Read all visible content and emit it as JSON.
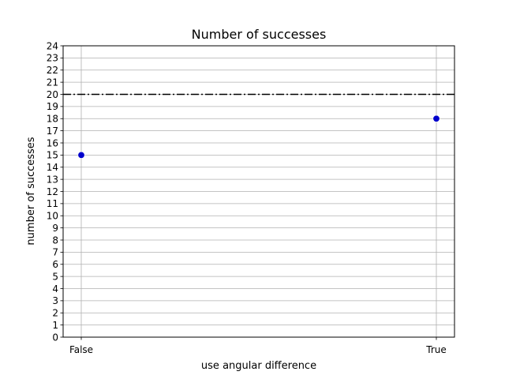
{
  "chart_data": {
    "type": "scatter",
    "title": "Number of successes",
    "xlabel": "use angular difference",
    "ylabel": "number of successes",
    "categories": [
      "False",
      "True"
    ],
    "values": [
      15,
      18
    ],
    "ylim": [
      0,
      24
    ],
    "y_ticks": [
      0,
      1,
      2,
      3,
      4,
      5,
      6,
      7,
      8,
      9,
      10,
      11,
      12,
      13,
      14,
      15,
      16,
      17,
      18,
      19,
      20,
      21,
      22,
      23,
      24
    ],
    "reference_line": {
      "y": 20,
      "style": "dash-dot",
      "color": "#000000"
    },
    "grid": true,
    "marker_color": "#0000cc"
  }
}
